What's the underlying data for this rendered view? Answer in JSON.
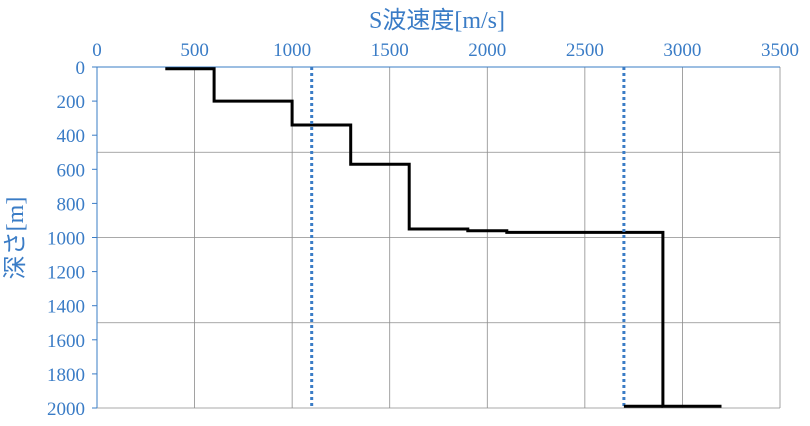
{
  "chart_data": {
    "type": "line",
    "xlabel": "S波速度[m/s]",
    "ylabel": "深さ[m]",
    "xlim": [
      0,
      3500
    ],
    "ylim": [
      0,
      2000
    ],
    "y_inverted": true,
    "x_axis_position": "top",
    "x_ticks": [
      0,
      500,
      1000,
      1500,
      2000,
      2500,
      3000,
      3500
    ],
    "y_ticks": [
      0,
      200,
      400,
      600,
      800,
      1000,
      1200,
      1400,
      1600,
      1800,
      2000
    ],
    "grid": true,
    "colors": {
      "axis_text": "#3a7cc6",
      "profile": "#000000",
      "reference": "#3a7cc6",
      "grid": "#8c8c8c"
    },
    "series": [
      {
        "style": "solid-step",
        "points": [
          [
            350,
            10
          ],
          [
            600,
            10
          ],
          [
            600,
            200
          ],
          [
            1000,
            200
          ],
          [
            1000,
            340
          ],
          [
            1300,
            340
          ],
          [
            1300,
            570
          ],
          [
            1600,
            570
          ],
          [
            1600,
            950
          ],
          [
            1900,
            950
          ],
          [
            1900,
            960
          ],
          [
            2100,
            960
          ],
          [
            2100,
            970
          ],
          [
            2900,
            970
          ],
          [
            2900,
            1990
          ],
          [
            3200,
            1990
          ]
        ]
      },
      {
        "style": "dotted",
        "points": [
          [
            1100,
            0
          ],
          [
            1100,
            2000
          ]
        ]
      },
      {
        "style": "dotted",
        "points": [
          [
            2700,
            0
          ],
          [
            2700,
            2000
          ]
        ]
      },
      {
        "style": "solid",
        "points": [
          [
            2700,
            1990
          ],
          [
            2900,
            1990
          ]
        ]
      }
    ]
  }
}
